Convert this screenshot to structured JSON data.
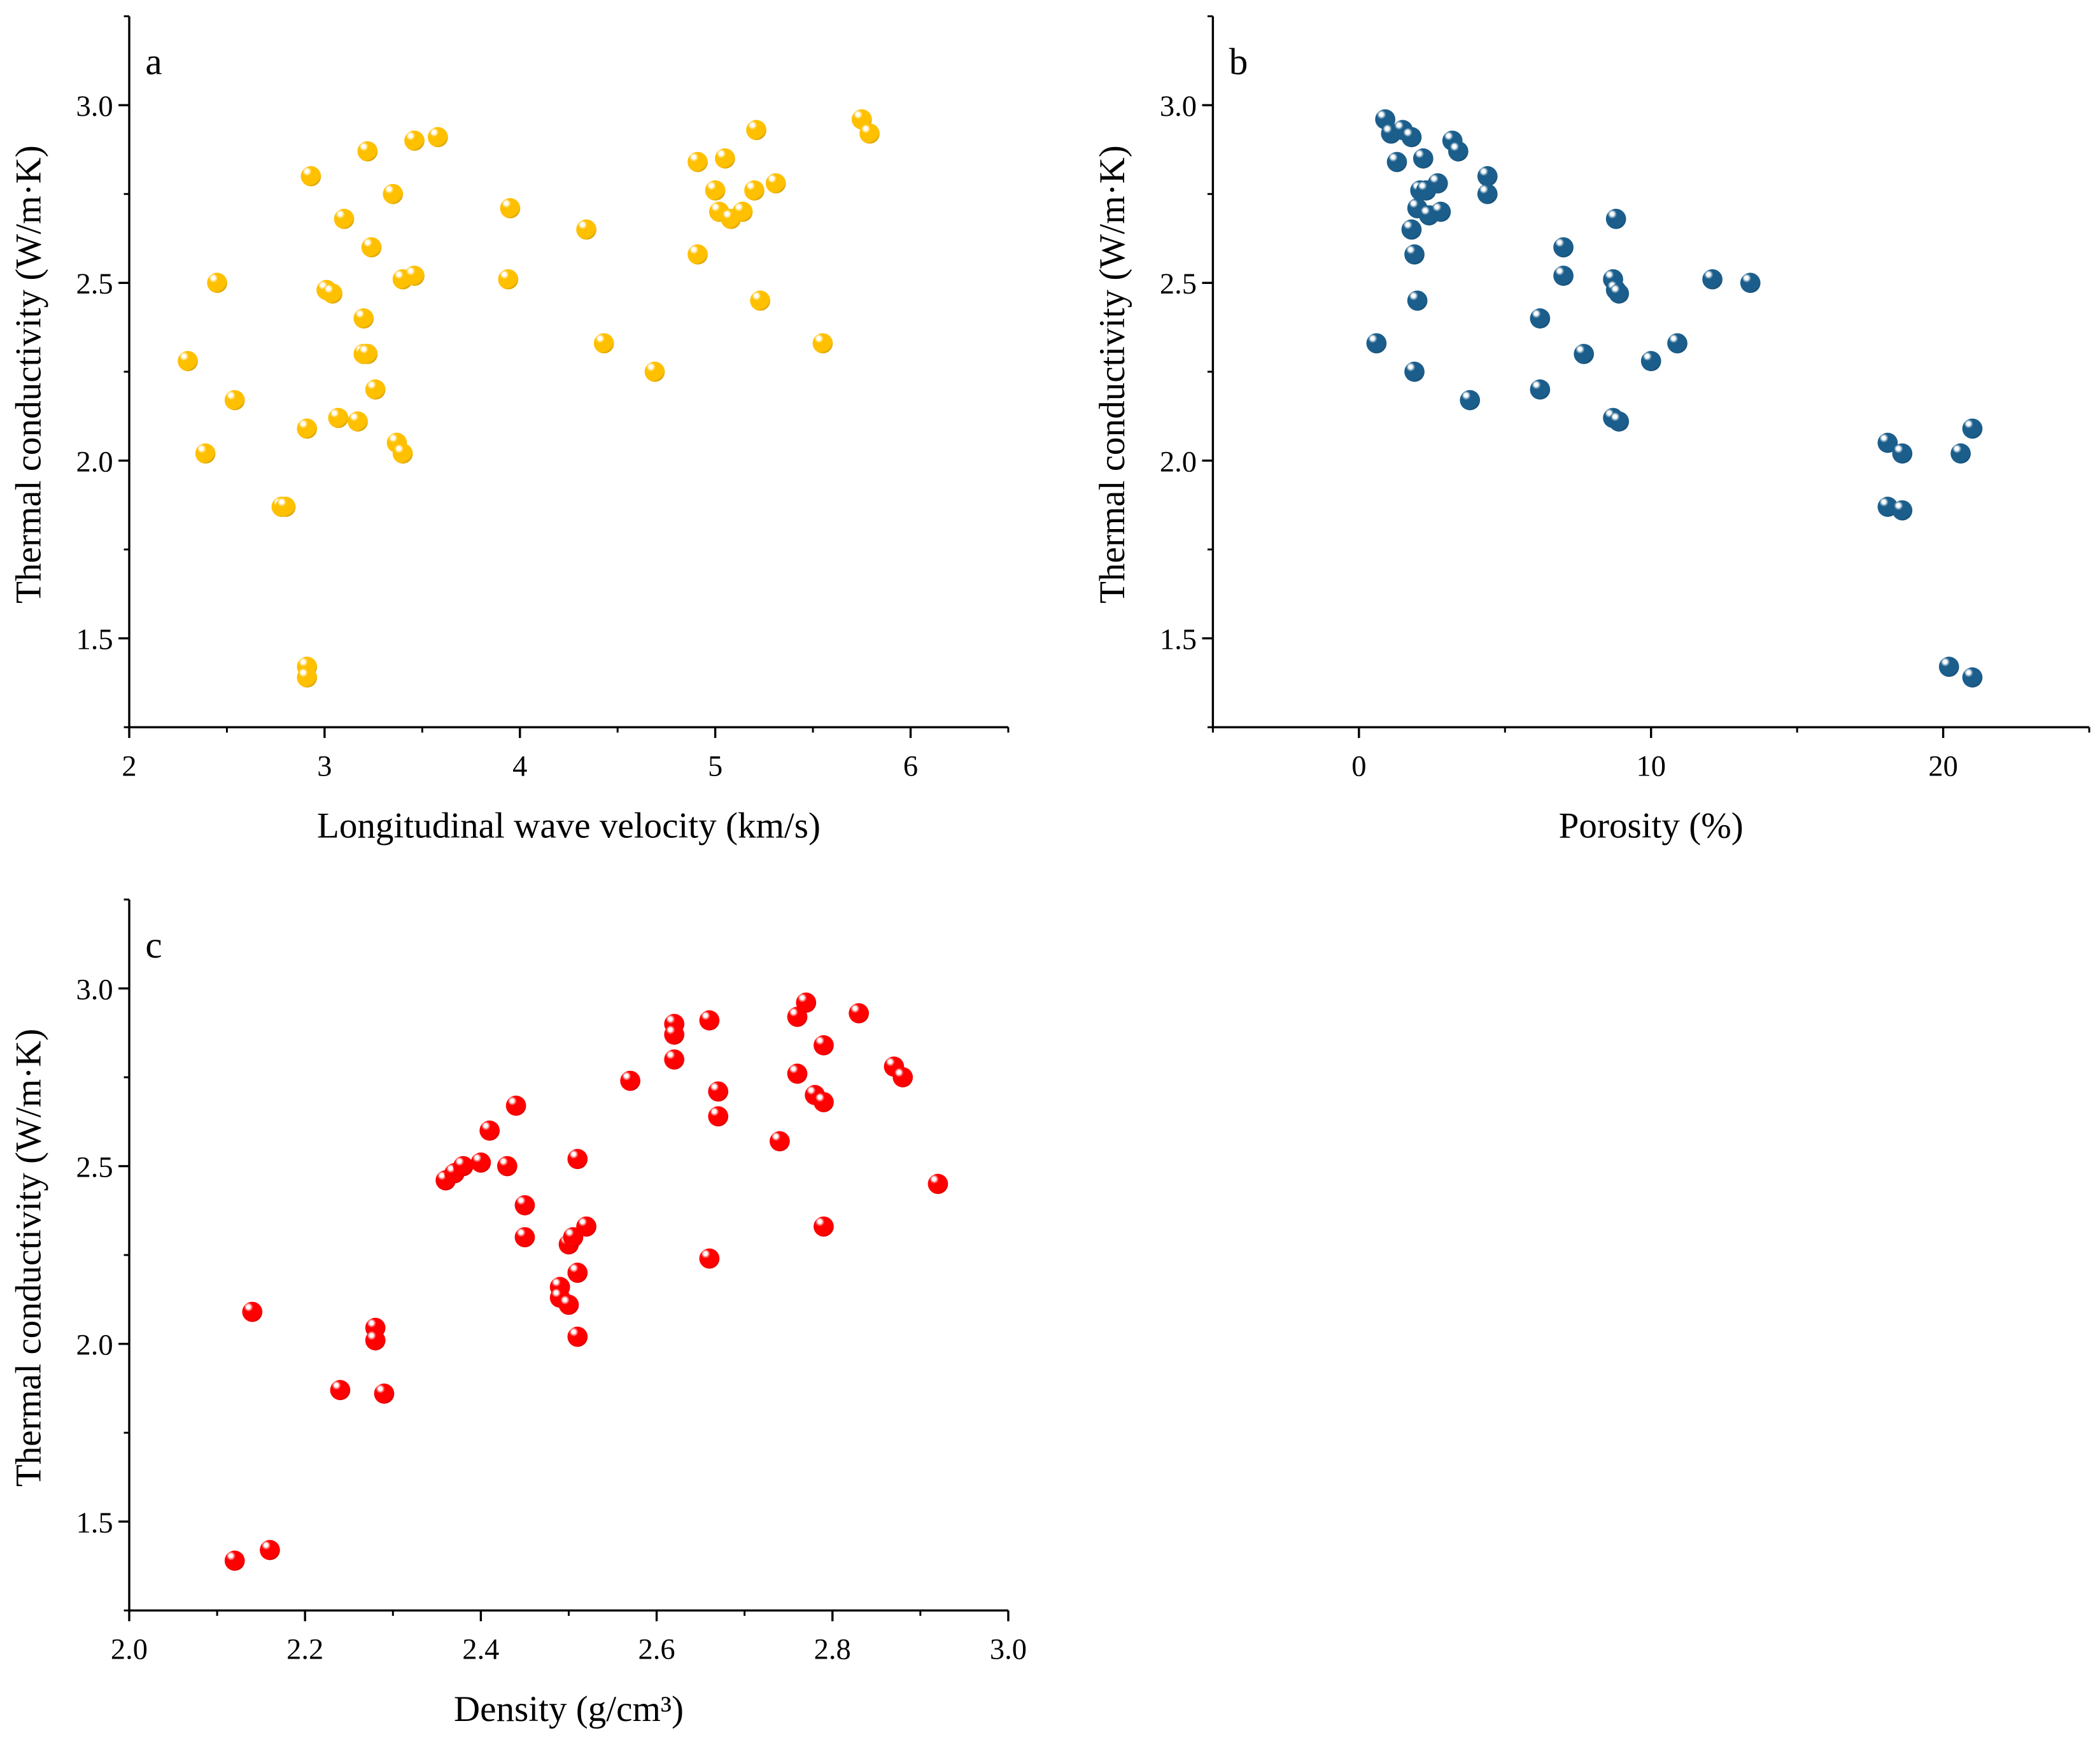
{
  "chart_data": [
    {
      "type": "scatter",
      "panel_label": "a",
      "xlabel": "Longitudinal wave velocity (km/s)",
      "ylabel": "Thermal conductivity (W/m·K)",
      "xlim": [
        2,
        6.5
      ],
      "ylim": [
        1.25,
        3.25
      ],
      "xticks": [
        2,
        3,
        4,
        5,
        6
      ],
      "xtick_labels": [
        "2",
        "3",
        "4",
        "5",
        "6"
      ],
      "yticks": [
        1.5,
        2.0,
        2.5,
        3.0
      ],
      "ytick_labels": [
        "1.5",
        "2.0",
        "2.5",
        "3.0"
      ],
      "color": "#FFC000",
      "grid": false,
      "points": [
        [
          2.3,
          2.28
        ],
        [
          2.45,
          2.5
        ],
        [
          2.54,
          2.17
        ],
        [
          2.39,
          2.02
        ],
        [
          2.78,
          1.87
        ],
        [
          2.8,
          1.87
        ],
        [
          2.91,
          1.42
        ],
        [
          2.91,
          1.39
        ],
        [
          2.91,
          2.09
        ],
        [
          2.93,
          2.8
        ],
        [
          3.01,
          2.48
        ],
        [
          3.04,
          2.47
        ],
        [
          3.07,
          2.12
        ],
        [
          3.1,
          2.68
        ],
        [
          3.17,
          2.11
        ],
        [
          3.2,
          2.4
        ],
        [
          3.2,
          2.3
        ],
        [
          3.22,
          2.3
        ],
        [
          3.22,
          2.87
        ],
        [
          3.24,
          2.6
        ],
        [
          3.26,
          2.2
        ],
        [
          3.35,
          2.75
        ],
        [
          3.37,
          2.05
        ],
        [
          3.4,
          2.02
        ],
        [
          3.4,
          2.51
        ],
        [
          3.46,
          2.52
        ],
        [
          3.46,
          2.9
        ],
        [
          3.58,
          2.91
        ],
        [
          3.95,
          2.71
        ],
        [
          3.94,
          2.51
        ],
        [
          4.34,
          2.65
        ],
        [
          4.43,
          2.33
        ],
        [
          4.69,
          2.25
        ],
        [
          4.91,
          2.58
        ],
        [
          4.91,
          2.84
        ],
        [
          5.0,
          2.76
        ],
        [
          5.05,
          2.85
        ],
        [
          5.02,
          2.7
        ],
        [
          5.08,
          2.68
        ],
        [
          5.14,
          2.7
        ],
        [
          5.2,
          2.76
        ],
        [
          5.21,
          2.93
        ],
        [
          5.23,
          2.45
        ],
        [
          5.31,
          2.78
        ],
        [
          5.55,
          2.33
        ],
        [
          5.75,
          2.96
        ],
        [
          5.79,
          2.92
        ]
      ]
    },
    {
      "type": "scatter",
      "panel_label": "b",
      "xlabel": "Porosity (%)",
      "ylabel": "Thermal conductivity (W/m·K)",
      "xlim": [
        -5,
        25
      ],
      "ylim": [
        1.25,
        3.25
      ],
      "xticks": [
        0,
        10,
        20
      ],
      "xtick_labels": [
        "0",
        "10",
        "20"
      ],
      "yticks": [
        1.5,
        2.0,
        2.5,
        3.0
      ],
      "ytick_labels": [
        "1.5",
        "2.0",
        "2.5",
        "3.0"
      ],
      "color": "#1B5E8C",
      "grid": false,
      "points": [
        [
          0.9,
          2.96
        ],
        [
          1.1,
          2.92
        ],
        [
          1.5,
          2.93
        ],
        [
          1.8,
          2.91
        ],
        [
          1.3,
          2.84
        ],
        [
          2.2,
          2.85
        ],
        [
          3.2,
          2.9
        ],
        [
          3.4,
          2.87
        ],
        [
          4.4,
          2.8
        ],
        [
          4.4,
          2.75
        ],
        [
          2.7,
          2.78
        ],
        [
          2.1,
          2.76
        ],
        [
          2.3,
          2.76
        ],
        [
          2.0,
          2.71
        ],
        [
          2.4,
          2.69
        ],
        [
          2.8,
          2.7
        ],
        [
          1.8,
          2.65
        ],
        [
          1.9,
          2.58
        ],
        [
          2.0,
          2.45
        ],
        [
          0.6,
          2.33
        ],
        [
          1.9,
          2.25
        ],
        [
          3.8,
          2.17
        ],
        [
          7.0,
          2.6
        ],
        [
          7.0,
          2.52
        ],
        [
          8.8,
          2.68
        ],
        [
          8.7,
          2.51
        ],
        [
          8.8,
          2.48
        ],
        [
          8.9,
          2.47
        ],
        [
          6.2,
          2.4
        ],
        [
          7.7,
          2.3
        ],
        [
          6.2,
          2.2
        ],
        [
          8.7,
          2.12
        ],
        [
          8.9,
          2.11
        ],
        [
          10.0,
          2.28
        ],
        [
          10.9,
          2.33
        ],
        [
          12.1,
          2.51
        ],
        [
          13.4,
          2.5
        ],
        [
          18.1,
          2.05
        ],
        [
          18.6,
          2.02
        ],
        [
          18.1,
          1.87
        ],
        [
          18.6,
          1.86
        ],
        [
          21.0,
          2.09
        ],
        [
          20.6,
          2.02
        ],
        [
          20.2,
          1.42
        ],
        [
          21.0,
          1.39
        ]
      ]
    },
    {
      "type": "scatter",
      "panel_label": "c",
      "xlabel": "Density (g/cm³)",
      "ylabel": "Thermal conductivity (W/m·K)",
      "xlim": [
        2.0,
        3.0
      ],
      "ylim": [
        1.25,
        3.25
      ],
      "xticks": [
        2.0,
        2.2,
        2.4,
        2.6,
        2.8,
        3.0
      ],
      "xtick_labels": [
        "2.0",
        "2.2",
        "2.4",
        "2.6",
        "2.8",
        "3.0"
      ],
      "yticks": [
        1.5,
        2.0,
        2.5,
        3.0
      ],
      "ytick_labels": [
        "1.5",
        "2.0",
        "2.5",
        "3.0"
      ],
      "color": "#FF0000",
      "grid": false,
      "points": [
        [
          2.12,
          1.39
        ],
        [
          2.16,
          1.42
        ],
        [
          2.14,
          2.09
        ],
        [
          2.24,
          1.87
        ],
        [
          2.29,
          1.86
        ],
        [
          2.28,
          2.045
        ],
        [
          2.28,
          2.01
        ],
        [
          2.36,
          2.46
        ],
        [
          2.37,
          2.48
        ],
        [
          2.38,
          2.5
        ],
        [
          2.4,
          2.51
        ],
        [
          2.43,
          2.5
        ],
        [
          2.41,
          2.6
        ],
        [
          2.44,
          2.67
        ],
        [
          2.45,
          2.39
        ],
        [
          2.45,
          2.3
        ],
        [
          2.49,
          2.16
        ],
        [
          2.49,
          2.13
        ],
        [
          2.5,
          2.11
        ],
        [
          2.5,
          2.28
        ],
        [
          2.505,
          2.3
        ],
        [
          2.51,
          2.52
        ],
        [
          2.51,
          2.2
        ],
        [
          2.51,
          2.02
        ],
        [
          2.52,
          2.33
        ],
        [
          2.57,
          2.74
        ],
        [
          2.62,
          2.9
        ],
        [
          2.62,
          2.87
        ],
        [
          2.62,
          2.8
        ],
        [
          2.66,
          2.91
        ],
        [
          2.67,
          2.71
        ],
        [
          2.67,
          2.64
        ],
        [
          2.66,
          2.24
        ],
        [
          2.74,
          2.57
        ],
        [
          2.76,
          2.92
        ],
        [
          2.77,
          2.96
        ],
        [
          2.76,
          2.76
        ],
        [
          2.78,
          2.7
        ],
        [
          2.79,
          2.68
        ],
        [
          2.79,
          2.84
        ],
        [
          2.79,
          2.33
        ],
        [
          2.83,
          2.93
        ],
        [
          2.87,
          2.78
        ],
        [
          2.88,
          2.75
        ],
        [
          2.92,
          2.45
        ]
      ]
    }
  ]
}
